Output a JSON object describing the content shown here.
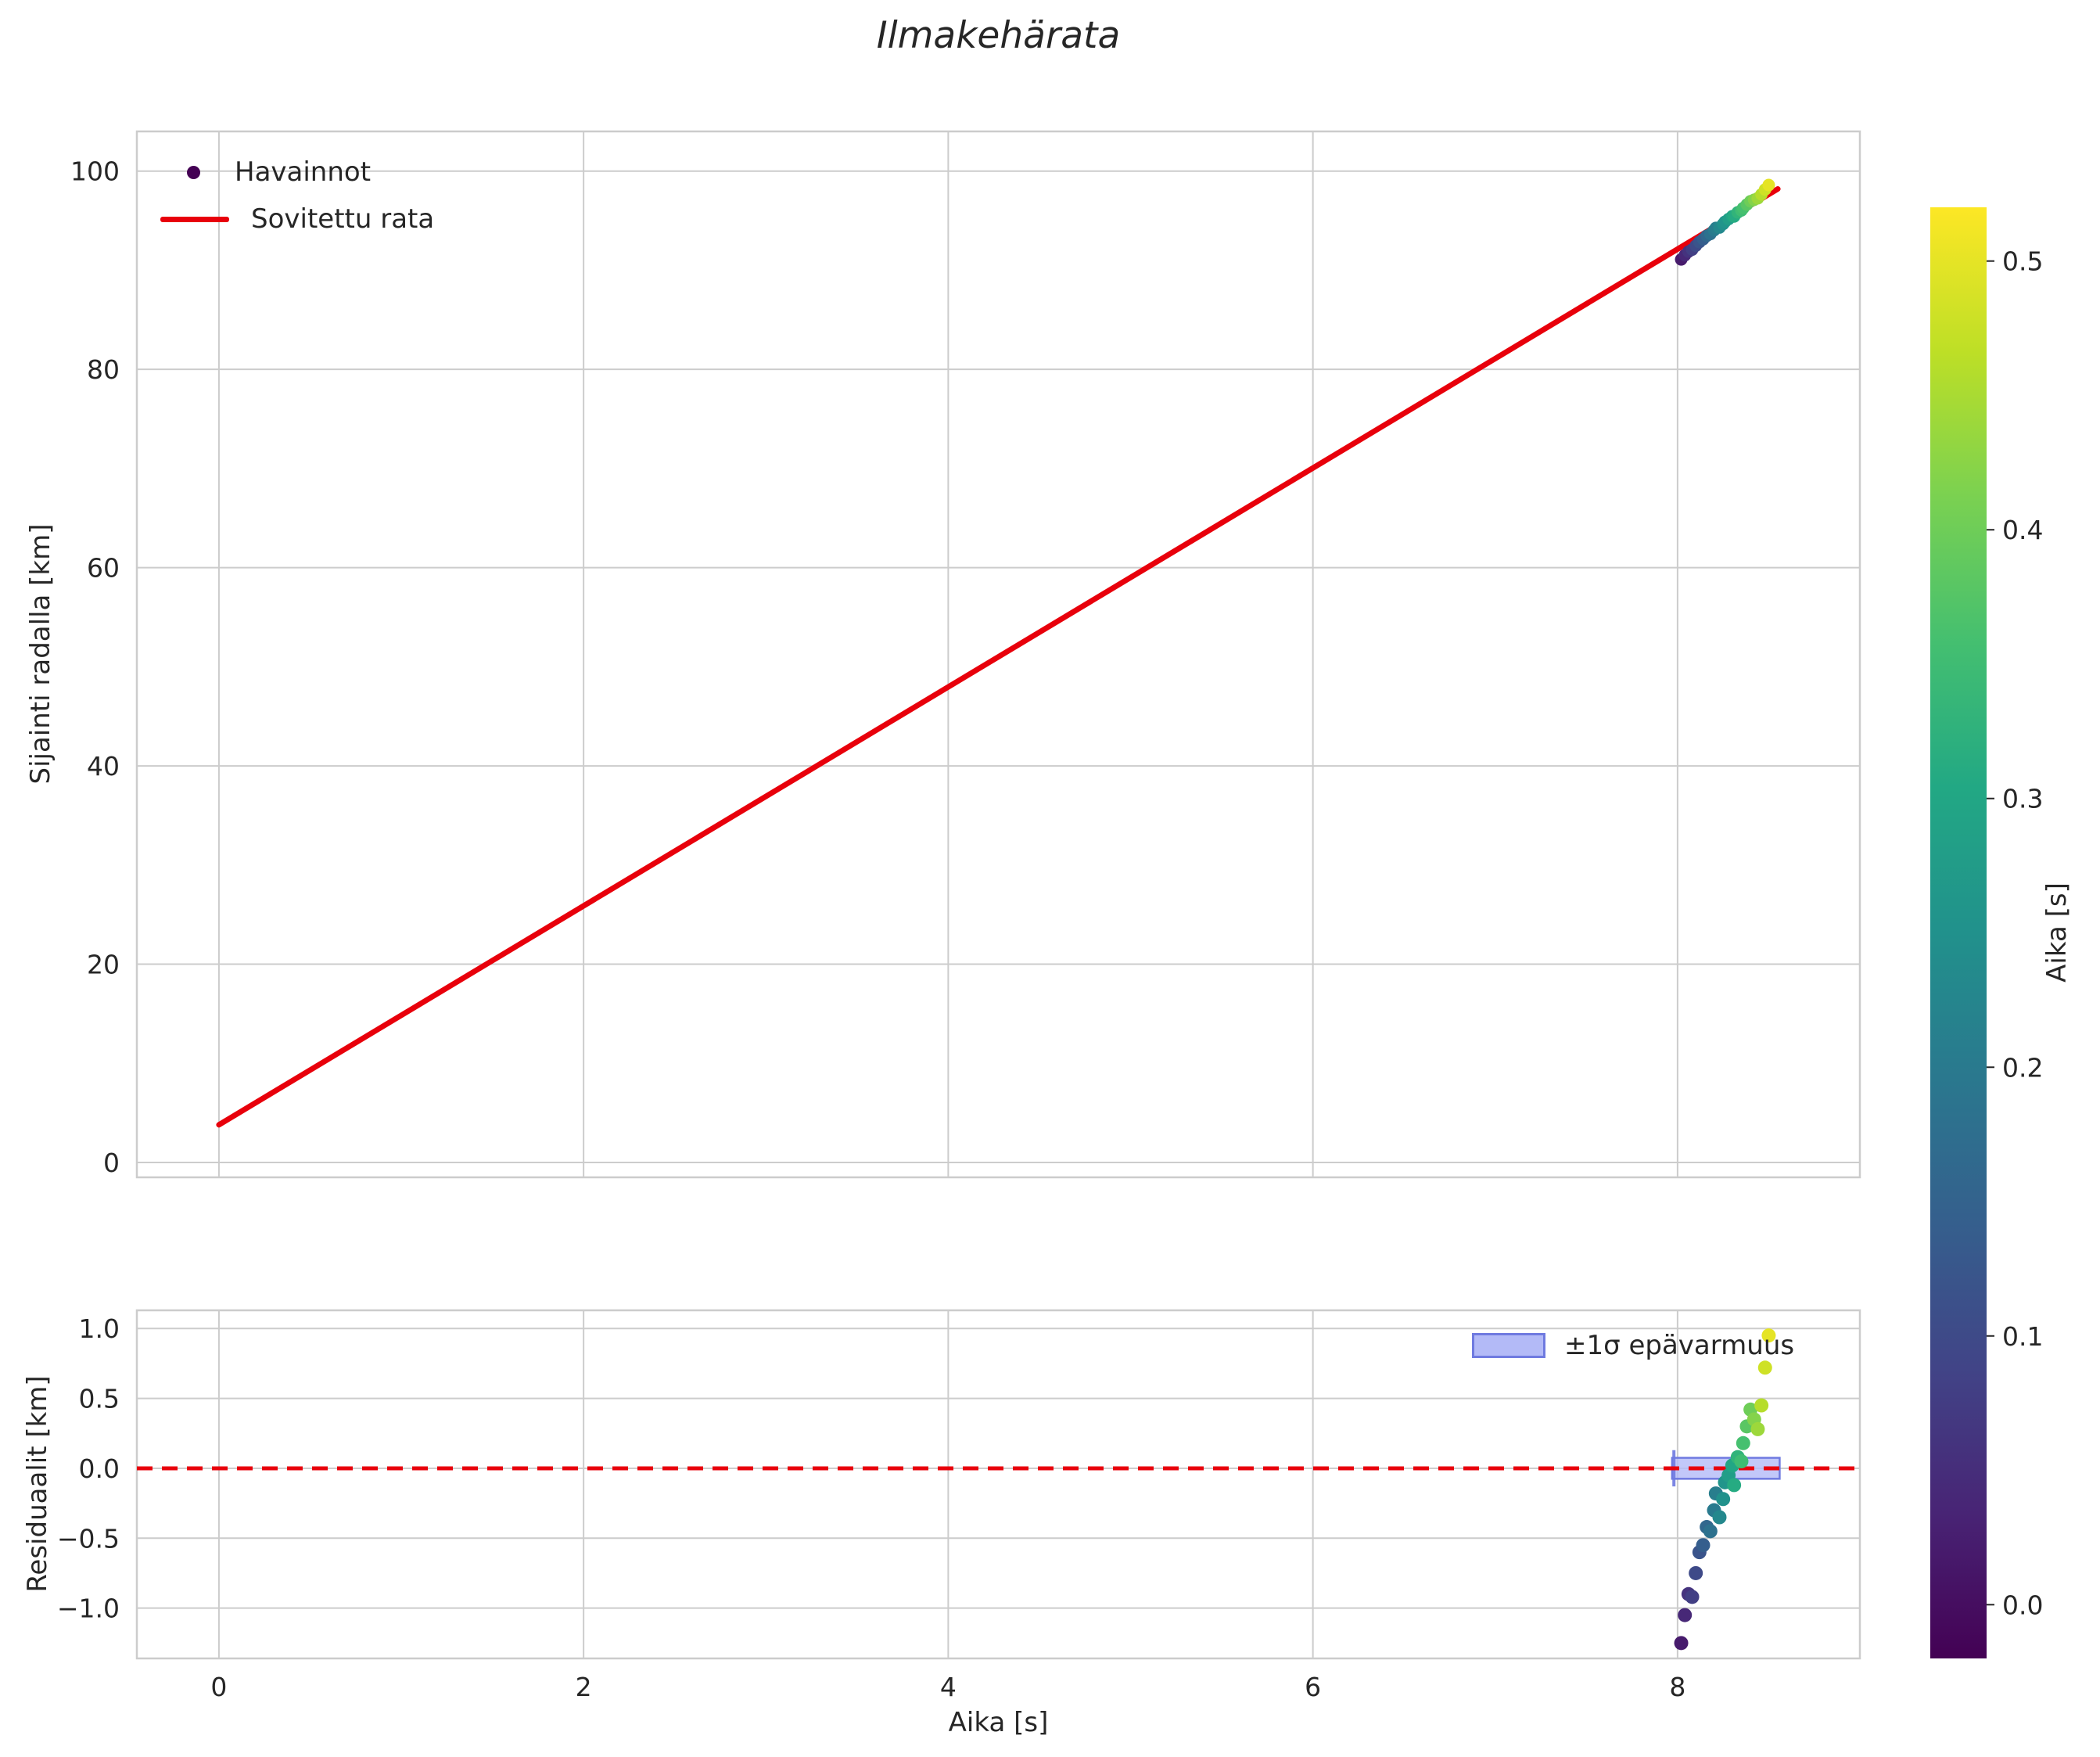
{
  "title": "Ilmakehärata",
  "labels": {
    "x": "Aika [s]",
    "y_top": "Sijainti radalla [km]",
    "y_bottom": "Residuaalit [km]"
  },
  "colorbar": {
    "label": "Aika [s]",
    "vmin": -0.02,
    "vmax": 0.52,
    "ticks": [
      0.0,
      0.1,
      0.2,
      0.3,
      0.4,
      0.5
    ],
    "tick_labels": [
      "0.0",
      "0.1",
      "0.2",
      "0.3",
      "0.4",
      "0.5"
    ]
  },
  "colormap": {
    "name": "viridis",
    "stops": [
      [
        0.0,
        "#440154"
      ],
      [
        0.1,
        "#482475"
      ],
      [
        0.2,
        "#414487"
      ],
      [
        0.3,
        "#355f8d"
      ],
      [
        0.4,
        "#2a788e"
      ],
      [
        0.5,
        "#21918c"
      ],
      [
        0.6,
        "#22a884"
      ],
      [
        0.7,
        "#44bf70"
      ],
      [
        0.8,
        "#7ad151"
      ],
      [
        0.9,
        "#bddf26"
      ],
      [
        1.0,
        "#fde725"
      ]
    ]
  },
  "style": {
    "grid_color": "#cccccc",
    "spine_color": "#cccccc",
    "text_color": "#262626",
    "fit_color": "#e8000b",
    "background": "#ffffff"
  },
  "chart_data": [
    {
      "type": "scatter",
      "name": "trajectory",
      "title": "Ilmakehärata",
      "ylabel": "Sijainti radalla [km]",
      "xlim": [
        -0.45,
        9.0
      ],
      "ylim": [
        -1.5,
        104
      ],
      "xticks": [
        0,
        2,
        4,
        6,
        8
      ],
      "xtick_labels": [
        "0",
        "2",
        "4",
        "6",
        "8"
      ],
      "show_xtick_labels": false,
      "yticks": [
        0,
        20,
        40,
        60,
        80,
        100
      ],
      "ytick_labels": [
        "0",
        "20",
        "40",
        "60",
        "80",
        "100"
      ],
      "grid": true,
      "legend": [
        {
          "label": "Havainnot",
          "marker": "dot",
          "color": "#440154"
        },
        {
          "label": "Sovitettu rata",
          "marker": "line",
          "color": "#e8000b"
        }
      ],
      "fit_line": {
        "name": "Sovitettu rata",
        "color": "#e8000b",
        "x": [
          0.0,
          8.55
        ],
        "y": [
          3.8,
          98.2
        ]
      },
      "points": {
        "name": "Havainnot",
        "t": [
          8.02,
          8.04,
          8.06,
          8.08,
          8.1,
          8.12,
          8.14,
          8.16,
          8.18,
          8.2,
          8.21,
          8.23,
          8.25,
          8.26,
          8.28,
          8.3,
          8.31,
          8.33,
          8.35,
          8.36,
          8.38,
          8.4,
          8.42,
          8.44,
          8.46,
          8.48,
          8.5
        ],
        "y": [
          91.09,
          91.51,
          91.88,
          92.08,
          92.47,
          92.84,
          93.12,
          93.47,
          93.66,
          94.03,
          94.26,
          94.31,
          94.66,
          94.89,
          95.16,
          95.45,
          95.42,
          95.84,
          96.03,
          96.27,
          96.62,
          96.96,
          97.11,
          97.26,
          97.65,
          98.14,
          98.59
        ],
        "c": [
          0.02,
          0.04,
          0.06,
          0.08,
          0.1,
          0.12,
          0.14,
          0.16,
          0.18,
          0.2,
          0.21,
          0.23,
          0.25,
          0.26,
          0.28,
          0.3,
          0.31,
          0.33,
          0.35,
          0.36,
          0.38,
          0.4,
          0.42,
          0.44,
          0.46,
          0.48,
          0.5
        ]
      }
    },
    {
      "type": "scatter",
      "name": "residuals",
      "xlabel": "Aika [s]",
      "ylabel": "Residuaalit [km]",
      "xlim": [
        -0.45,
        9.0
      ],
      "ylim": [
        -1.36,
        1.13
      ],
      "xticks": [
        0,
        2,
        4,
        6,
        8
      ],
      "xtick_labels": [
        "0",
        "2",
        "4",
        "6",
        "8"
      ],
      "yticks": [
        -1.0,
        -0.5,
        0.0,
        0.5,
        1.0
      ],
      "ytick_labels": [
        "−1.0",
        "−0.5",
        "0.0",
        "0.5",
        "1.0"
      ],
      "grid": true,
      "zero_line": {
        "y": 0.0,
        "color": "#e8000b",
        "dashed": true
      },
      "band": {
        "label": "±1σ epävarmuus",
        "x0": 7.97,
        "x1": 8.56,
        "y0": -0.075,
        "y1": 0.075,
        "fill": "#b3baf7",
        "edge": "#6f7ae0"
      },
      "points": {
        "t": [
          8.02,
          8.04,
          8.06,
          8.08,
          8.1,
          8.12,
          8.14,
          8.16,
          8.18,
          8.2,
          8.21,
          8.23,
          8.25,
          8.26,
          8.28,
          8.3,
          8.31,
          8.33,
          8.35,
          8.36,
          8.38,
          8.4,
          8.42,
          8.44,
          8.46,
          8.48,
          8.5
        ],
        "r": [
          -1.25,
          -1.05,
          -0.9,
          -0.92,
          -0.75,
          -0.6,
          -0.55,
          -0.42,
          -0.45,
          -0.3,
          -0.18,
          -0.35,
          -0.22,
          -0.1,
          -0.05,
          0.02,
          -0.12,
          0.08,
          0.05,
          0.18,
          0.3,
          0.42,
          0.35,
          0.28,
          0.45,
          0.72,
          0.95
        ],
        "c": [
          0.02,
          0.04,
          0.06,
          0.08,
          0.1,
          0.12,
          0.14,
          0.16,
          0.18,
          0.2,
          0.21,
          0.23,
          0.25,
          0.26,
          0.28,
          0.3,
          0.31,
          0.33,
          0.35,
          0.36,
          0.38,
          0.4,
          0.42,
          0.44,
          0.46,
          0.48,
          0.5
        ]
      }
    }
  ]
}
